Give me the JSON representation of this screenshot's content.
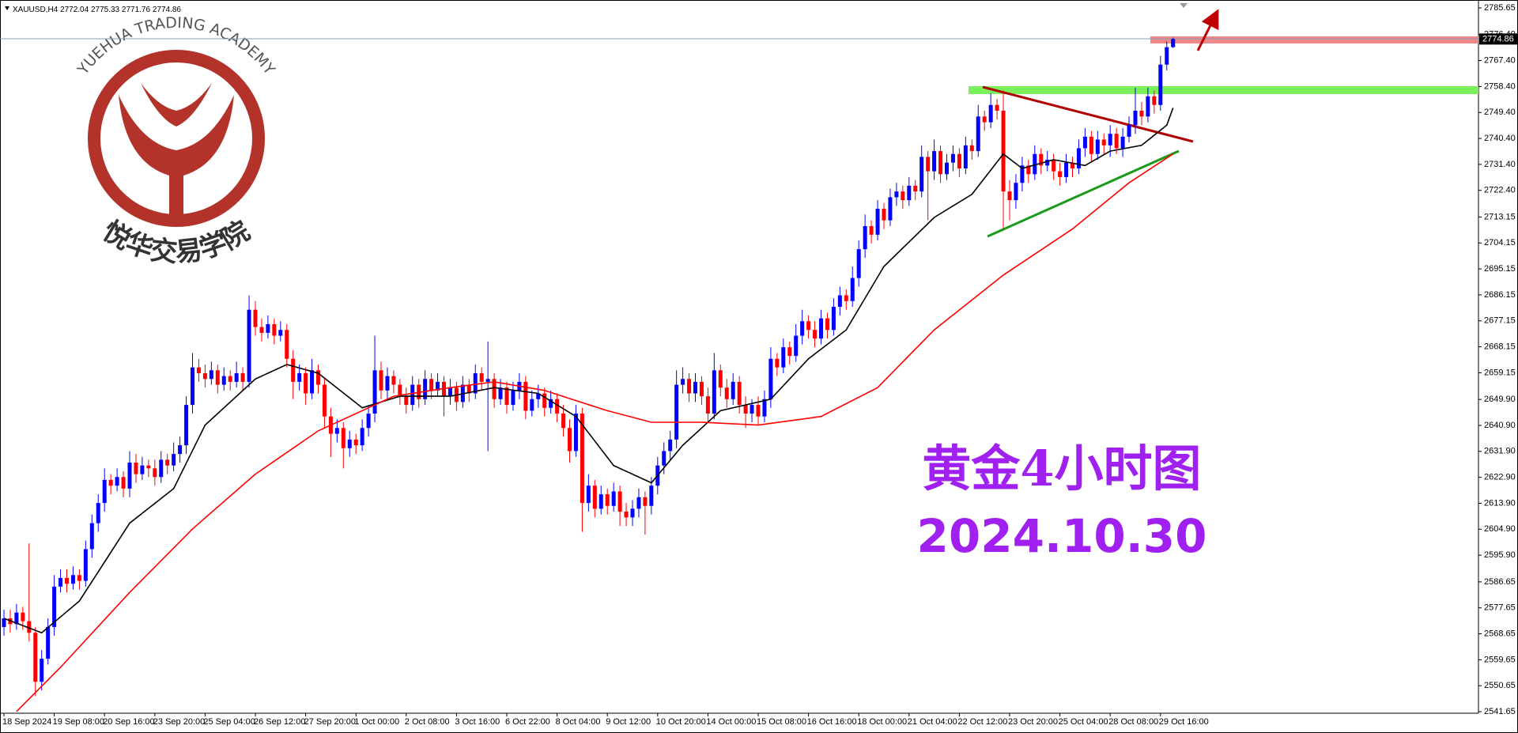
{
  "chart_data": {
    "type": "candlestick",
    "symbol": "XAUUSD,H4",
    "categories": [
      "18 Sep 2024",
      null,
      null,
      null,
      null,
      null,
      null,
      null,
      "19 Sep 08:00",
      null,
      null,
      null,
      null,
      null,
      null,
      null,
      "20 Sep 16:00",
      null,
      null,
      null,
      null,
      null,
      null,
      null,
      "23 Sep 20:00",
      null,
      null,
      null,
      null,
      null,
      null,
      null,
      "25 Sep 04:00",
      null,
      null,
      null,
      null,
      null,
      null,
      null,
      "26 Sep 12:00",
      null,
      null,
      null,
      null,
      null,
      null,
      null,
      "27 Sep 20:00",
      null,
      null,
      null,
      null,
      null,
      null,
      null,
      "1 Oct 00:00",
      null,
      null,
      null,
      null,
      null,
      null,
      null,
      "2 Oct 08:00",
      null,
      null,
      null,
      null,
      null,
      null,
      null,
      "3 Oct 16:00",
      null,
      null,
      null,
      null,
      null,
      null,
      null,
      "6 Oct 22:00",
      null,
      null,
      null,
      null,
      null,
      null,
      null,
      "8 Oct 04:00",
      null,
      null,
      null,
      null,
      null,
      null,
      null,
      "9 Oct 12:00",
      null,
      null,
      null,
      null,
      null,
      null,
      null,
      "10 Oct 20:00",
      null,
      null,
      null,
      null,
      null,
      null,
      null,
      "14 Oct 00:00",
      null,
      null,
      null,
      null,
      null,
      null,
      null,
      "15 Oct 08:00",
      null,
      null,
      null,
      null,
      null,
      null,
      null,
      "16 Oct 16:00",
      null,
      null,
      null,
      null,
      null,
      null,
      null,
      "18 Oct 00:00",
      null,
      null,
      null,
      null,
      null,
      null,
      null,
      "21 Oct 04:00",
      null,
      null,
      null,
      null,
      null,
      null,
      null,
      "22 Oct 12:00",
      null,
      null,
      null,
      null,
      null,
      null,
      null,
      "23 Oct 20:00",
      null,
      null,
      null,
      null,
      null,
      null,
      null,
      "25 Oct 04:00",
      null,
      null,
      null,
      null,
      null,
      null,
      null,
      "28 Oct 08:00",
      null,
      null,
      null,
      null,
      null,
      null,
      null,
      "29 Oct 16:00",
      null,
      null
    ],
    "open": [
      2571,
      2574,
      2572,
      2576,
      2573,
      2569,
      2552,
      2560,
      2571,
      2585,
      2588,
      2586,
      2589,
      2587,
      2598,
      2607,
      2614,
      2622,
      2620,
      2623,
      2619,
      2628,
      2624,
      2627,
      2626,
      2623,
      2629,
      2627,
      2631,
      2634,
      2648,
      2661,
      2659,
      2657,
      2660,
      2655,
      2658,
      2656,
      2659,
      2656,
      2681,
      2675,
      2673,
      2676,
      2672,
      2674,
      2664,
      2656,
      2659,
      2652,
      2660,
      2655,
      2644,
      2638,
      2640,
      2633,
      2636,
      2634,
      2640,
      2645,
      2660,
      2653,
      2658,
      2655,
      2651,
      2648,
      2655,
      2650,
      2657,
      2653,
      2656,
      2651,
      2654,
      2649,
      2655,
      2652,
      2659,
      2656,
      2657,
      2650,
      2654,
      2648,
      2653,
      2656,
      2646,
      2650,
      2652,
      2647,
      2650,
      2645,
      2640,
      2632,
      2645,
      2614,
      2620,
      2612,
      2617,
      2613,
      2618,
      2611,
      2609,
      2612,
      2616,
      2613,
      2620,
      2627,
      2632,
      2636,
      2655,
      2657,
      2652,
      2656,
      2651,
      2645,
      2660,
      2654,
      2650,
      2656,
      2648,
      2645,
      2648,
      2644,
      2650,
      2664,
      2661,
      2668,
      2665,
      2672,
      2677,
      2674,
      2671,
      2678,
      2674,
      2682,
      2686,
      2684,
      2692,
      2702,
      2710,
      2707,
      2716,
      2712,
      2720,
      2722,
      2719,
      2724,
      2722,
      2734,
      2729,
      2736,
      2728,
      2732,
      2735,
      2730,
      2738,
      2736,
      2748,
      2746,
      2752,
      2750,
      2722,
      2719,
      2725,
      2731,
      2728,
      2735,
      2731,
      2733,
      2729,
      2727,
      2732,
      2730,
      2737,
      2741,
      2735,
      2740,
      2738,
      2742,
      2737,
      2741,
      2745,
      2750,
      2748,
      2755,
      2752,
      2766,
      2772.04
    ],
    "high": [
      2577,
      2577,
      2579,
      2578,
      2600,
      2571,
      2563,
      2574,
      2589,
      2591,
      2591,
      2592,
      2591,
      2601,
      2610,
      2617,
      2626,
      2624,
      2626,
      2625,
      2632,
      2631,
      2630,
      2629,
      2629,
      2632,
      2631,
      2635,
      2637,
      2651,
      2666,
      2664,
      2662,
      2663,
      2662,
      2661,
      2660,
      2663,
      2661,
      2686,
      2684,
      2678,
      2679,
      2678,
      2677,
      2676,
      2667,
      2662,
      2661,
      2664,
      2662,
      2657,
      2647,
      2643,
      2642,
      2639,
      2638,
      2643,
      2648,
      2672,
      2663,
      2661,
      2660,
      2657,
      2654,
      2658,
      2657,
      2660,
      2659,
      2659,
      2658,
      2657,
      2656,
      2658,
      2657,
      2662,
      2661,
      2670,
      2659,
      2657,
      2656,
      2656,
      2659,
      2658,
      2653,
      2655,
      2654,
      2653,
      2652,
      2648,
      2643,
      2648,
      2647,
      2624,
      2622,
      2620,
      2619,
      2621,
      2620,
      2614,
      2615,
      2619,
      2618,
      2623,
      2630,
      2635,
      2639,
      2660,
      2661,
      2659,
      2659,
      2658,
      2654,
      2666,
      2662,
      2657,
      2659,
      2658,
      2651,
      2650,
      2651,
      2653,
      2668,
      2666,
      2671,
      2670,
      2676,
      2681,
      2679,
      2677,
      2681,
      2680,
      2685,
      2689,
      2688,
      2696,
      2705,
      2714,
      2712,
      2719,
      2718,
      2723,
      2725,
      2724,
      2727,
      2726,
      2738,
      2736,
      2740,
      2738,
      2735,
      2738,
      2737,
      2741,
      2740,
      2752,
      2750,
      2756,
      2754,
      2757,
      2726,
      2728,
      2734,
      2733,
      2738,
      2737,
      2736,
      2735,
      2732,
      2735,
      2734,
      2740,
      2744,
      2743,
      2743,
      2742,
      2745,
      2744,
      2744,
      2748,
      2758,
      2753,
      2758,
      2757,
      2769,
      2774,
      2775.33
    ],
    "low": [
      2568,
      2569,
      2570,
      2570,
      2566,
      2547,
      2549,
      2558,
      2568,
      2583,
      2583,
      2584,
      2584,
      2585,
      2595,
      2604,
      2611,
      2617,
      2618,
      2616,
      2616,
      2621,
      2622,
      2623,
      2620,
      2621,
      2624,
      2625,
      2628,
      2631,
      2645,
      2656,
      2654,
      2655,
      2652,
      2653,
      2653,
      2654,
      2653,
      2654,
      2672,
      2670,
      2671,
      2669,
      2670,
      2661,
      2650,
      2653,
      2648,
      2650,
      2652,
      2640,
      2630,
      2635,
      2626,
      2630,
      2631,
      2632,
      2637,
      2642,
      2650,
      2650,
      2652,
      2648,
      2645,
      2646,
      2647,
      2648,
      2650,
      2651,
      2644,
      2648,
      2646,
      2647,
      2649,
      2650,
      2653,
      2632,
      2647,
      2648,
      2645,
      2646,
      2650,
      2643,
      2644,
      2647,
      2644,
      2645,
      2642,
      2637,
      2628,
      2630,
      2604,
      2611,
      2609,
      2610,
      2610,
      2611,
      2606,
      2606,
      2606,
      2609,
      2603,
      2610,
      2617,
      2624,
      2629,
      2633,
      2652,
      2649,
      2649,
      2648,
      2642,
      2643,
      2651,
      2647,
      2648,
      2645,
      2640,
      2642,
      2641,
      2642,
      2647,
      2658,
      2659,
      2662,
      2663,
      2669,
      2671,
      2668,
      2669,
      2671,
      2672,
      2679,
      2681,
      2682,
      2689,
      2699,
      2704,
      2705,
      2709,
      2710,
      2717,
      2716,
      2717,
      2719,
      2720,
      2712,
      2726,
      2725,
      2726,
      2729,
      2727,
      2728,
      2733,
      2734,
      2743,
      2744,
      2747,
      2709,
      2712,
      2716,
      2722,
      2725,
      2726,
      2728,
      2729,
      2726,
      2724,
      2725,
      2727,
      2728,
      2734,
      2732,
      2733,
      2735,
      2734,
      2735,
      2734,
      2739,
      2742,
      2745,
      2746,
      2749,
      2750,
      2764,
      2771.76
    ],
    "close": [
      2574,
      2572,
      2576,
      2573,
      2569,
      2552,
      2560,
      2571,
      2585,
      2588,
      2586,
      2589,
      2587,
      2598,
      2607,
      2614,
      2622,
      2620,
      2623,
      2619,
      2628,
      2624,
      2627,
      2626,
      2623,
      2629,
      2627,
      2631,
      2634,
      2648,
      2661,
      2659,
      2657,
      2660,
      2655,
      2658,
      2656,
      2659,
      2656,
      2681,
      2675,
      2673,
      2676,
      2672,
      2674,
      2664,
      2656,
      2659,
      2652,
      2660,
      2655,
      2644,
      2638,
      2640,
      2633,
      2636,
      2634,
      2640,
      2645,
      2660,
      2653,
      2658,
      2655,
      2651,
      2648,
      2655,
      2650,
      2657,
      2653,
      2656,
      2651,
      2654,
      2649,
      2655,
      2652,
      2659,
      2656,
      2657,
      2650,
      2654,
      2648,
      2653,
      2656,
      2646,
      2650,
      2652,
      2647,
      2650,
      2645,
      2640,
      2632,
      2645,
      2614,
      2620,
      2612,
      2617,
      2613,
      2618,
      2611,
      2609,
      2612,
      2616,
      2613,
      2620,
      2627,
      2632,
      2636,
      2655,
      2657,
      2652,
      2656,
      2651,
      2645,
      2660,
      2654,
      2650,
      2656,
      2648,
      2645,
      2648,
      2644,
      2650,
      2664,
      2661,
      2668,
      2665,
      2672,
      2677,
      2674,
      2671,
      2678,
      2674,
      2682,
      2686,
      2684,
      2692,
      2702,
      2710,
      2707,
      2716,
      2712,
      2720,
      2722,
      2719,
      2724,
      2722,
      2734,
      2729,
      2736,
      2728,
      2732,
      2735,
      2730,
      2738,
      2736,
      2748,
      2746,
      2752,
      2750,
      2722,
      2719,
      2725,
      2731,
      2728,
      2735,
      2731,
      2733,
      2729,
      2727,
      2732,
      2730,
      2737,
      2741,
      2735,
      2740,
      2738,
      2742,
      2737,
      2741,
      2745,
      2750,
      2748,
      2755,
      2752,
      2766,
      2772.04,
      2774.86
    ],
    "up_color": "#0000ff",
    "down_color": "#ff0000",
    "ylim": [
      2541.65,
      2785.65
    ],
    "yticks": [
      2541.65,
      2550.65,
      2559.65,
      2568.65,
      2577.65,
      2586.65,
      {
        "value": 2595.9,
        "label": "2595.90"
      },
      {
        "value": 2604.9,
        "label": "2604.90"
      },
      {
        "value": 2613.9,
        "label": "2613.90"
      },
      {
        "value": 2622.9,
        "label": "2622.90"
      },
      {
        "value": 2631.9,
        "label": "2631.90"
      },
      {
        "value": 2640.9,
        "label": "2640.90"
      },
      {
        "value": 2649.9,
        "label": "2649.90"
      },
      2659.15,
      2668.15,
      2677.15,
      2686.15,
      2695.15,
      2704.15,
      2713.15,
      {
        "value": 2722.4,
        "label": "2722.40"
      },
      {
        "value": 2731.4,
        "label": "2731.40"
      },
      {
        "value": 2740.4,
        "label": "2740.40"
      },
      {
        "value": 2749.4,
        "label": "2749.40"
      },
      {
        "value": 2758.4,
        "label": "2758.40"
      },
      {
        "value": 2767.4,
        "label": "2767.40"
      },
      {
        "value": 2776.4,
        "label": "2776.40"
      },
      2785.65
    ],
    "lines": [
      {
        "color": "#000000",
        "x": [
          0,
          6,
          12,
          20,
          27,
          32,
          40,
          45,
          50,
          57,
          63,
          71,
          78,
          85,
          91,
          97,
          103,
          108,
          114,
          122,
          128,
          134,
          140,
          148,
          154,
          159,
          162,
          167,
          172,
          176,
          181,
          185,
          186
        ],
        "values": [
          2574,
          2569,
          2580,
          2607,
          2619,
          2641,
          2657,
          2662,
          2659,
          2647,
          2651,
          2651,
          2654,
          2652,
          2644,
          2627,
          2621,
          2634,
          2646,
          2650,
          2664,
          2674,
          2696,
          2713,
          2721,
          2735,
          2730,
          2733,
          2731,
          2736,
          2738,
          2745,
          2751
        ]
      },
      {
        "color": "#ff0000",
        "x": [
          2,
          9,
          20,
          30,
          40,
          50,
          62,
          71,
          78,
          86,
          96,
          103,
          111,
          120,
          130,
          139,
          148,
          159,
          170,
          179,
          186
        ],
        "values": [
          2541.7,
          2557,
          2583,
          2605,
          2624,
          2639,
          2651,
          2654,
          2656,
          2653,
          2646,
          2642,
          2642,
          2641,
          2644,
          2654,
          2674,
          2693,
          2709,
          2725,
          2735
        ]
      }
    ],
    "annotations": [
      "黄金4小时图",
      "2024.10.30"
    ]
  },
  "logo": {
    "text": "YUEHUA TRADING ACADEMY",
    "chinese": "悦华交易学院"
  }
}
